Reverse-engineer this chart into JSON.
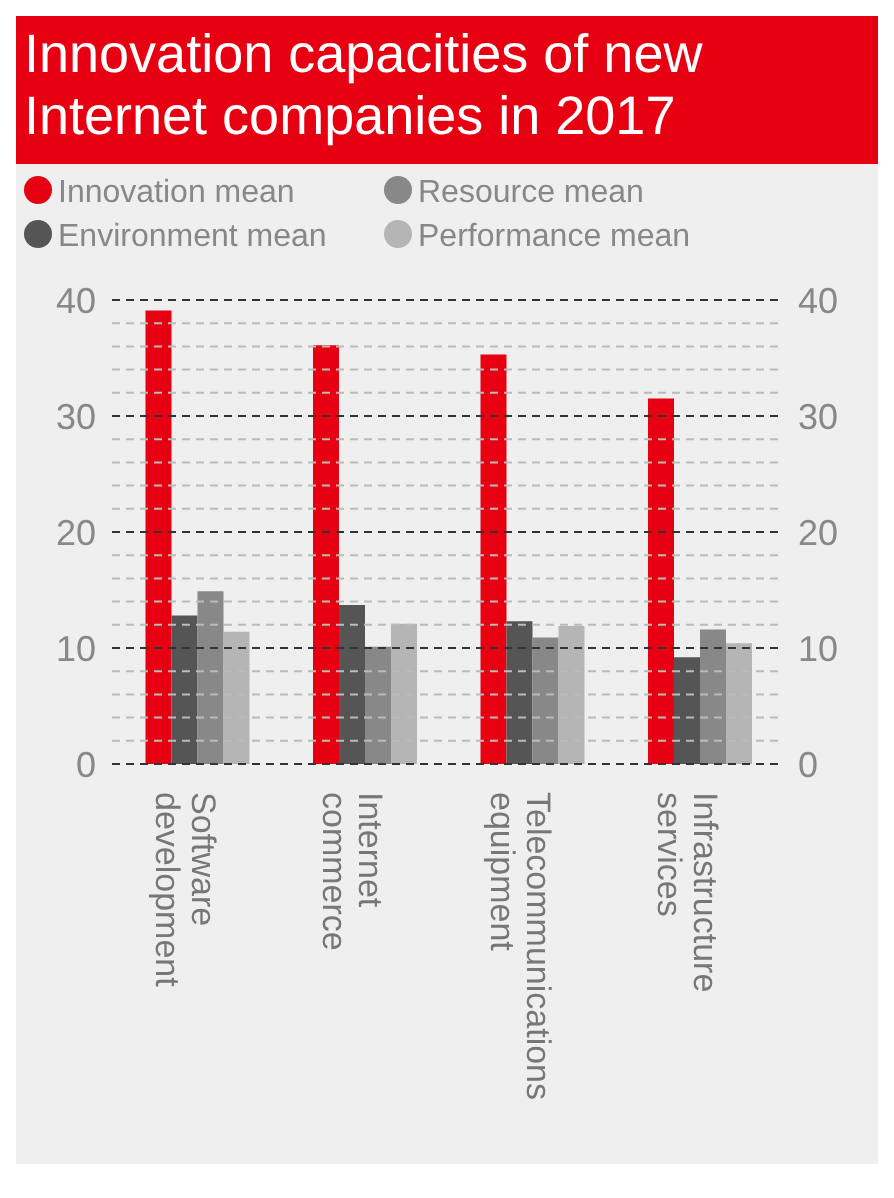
{
  "chart_data": {
    "type": "bar",
    "title": "Innovation capacities of new Internet companies in 2017",
    "categories": [
      "Software development",
      "Internet commerce",
      "Telecommunications equipment",
      "Infrastructure services"
    ],
    "series": [
      {
        "name": "Innovation mean",
        "color": "#e60012",
        "values": [
          39.1,
          36.1,
          35.3,
          31.5
        ]
      },
      {
        "name": "Environment mean",
        "color": "#555555",
        "values": [
          12.8,
          13.7,
          12.3,
          9.2
        ]
      },
      {
        "name": "Resource mean",
        "color": "#888888",
        "values": [
          14.9,
          10.1,
          10.9,
          11.6
        ]
      },
      {
        "name": "Performance mean",
        "color": "#b5b5b5",
        "values": [
          11.4,
          12.1,
          11.9,
          10.4
        ]
      }
    ],
    "ylim": [
      0,
      40
    ],
    "yticks": [
      0,
      {
        "value": 2,
        "label": null
      },
      {
        "value": 4,
        "label": null
      },
      {
        "value": 6,
        "label": null
      },
      {
        "value": 8,
        "label": null
      },
      10,
      {
        "value": 12,
        "label": null
      },
      {
        "value": 14,
        "label": null
      },
      {
        "value": 16,
        "label": null
      },
      {
        "value": 18,
        "label": null
      },
      20,
      {
        "value": 22,
        "label": null
      },
      {
        "value": 24,
        "label": null
      },
      {
        "value": 26,
        "label": null
      },
      {
        "value": 28,
        "label": null
      },
      30,
      {
        "value": 32,
        "label": null
      },
      {
        "value": 34,
        "label": null
      },
      {
        "value": 36,
        "label": null
      },
      {
        "value": 38,
        "label": null
      },
      40
    ],
    "y2lim": [
      0,
      40
    ],
    "y2ticks": [
      0,
      10,
      20,
      30,
      40
    ],
    "grid": "y",
    "legend": "top left"
  }
}
